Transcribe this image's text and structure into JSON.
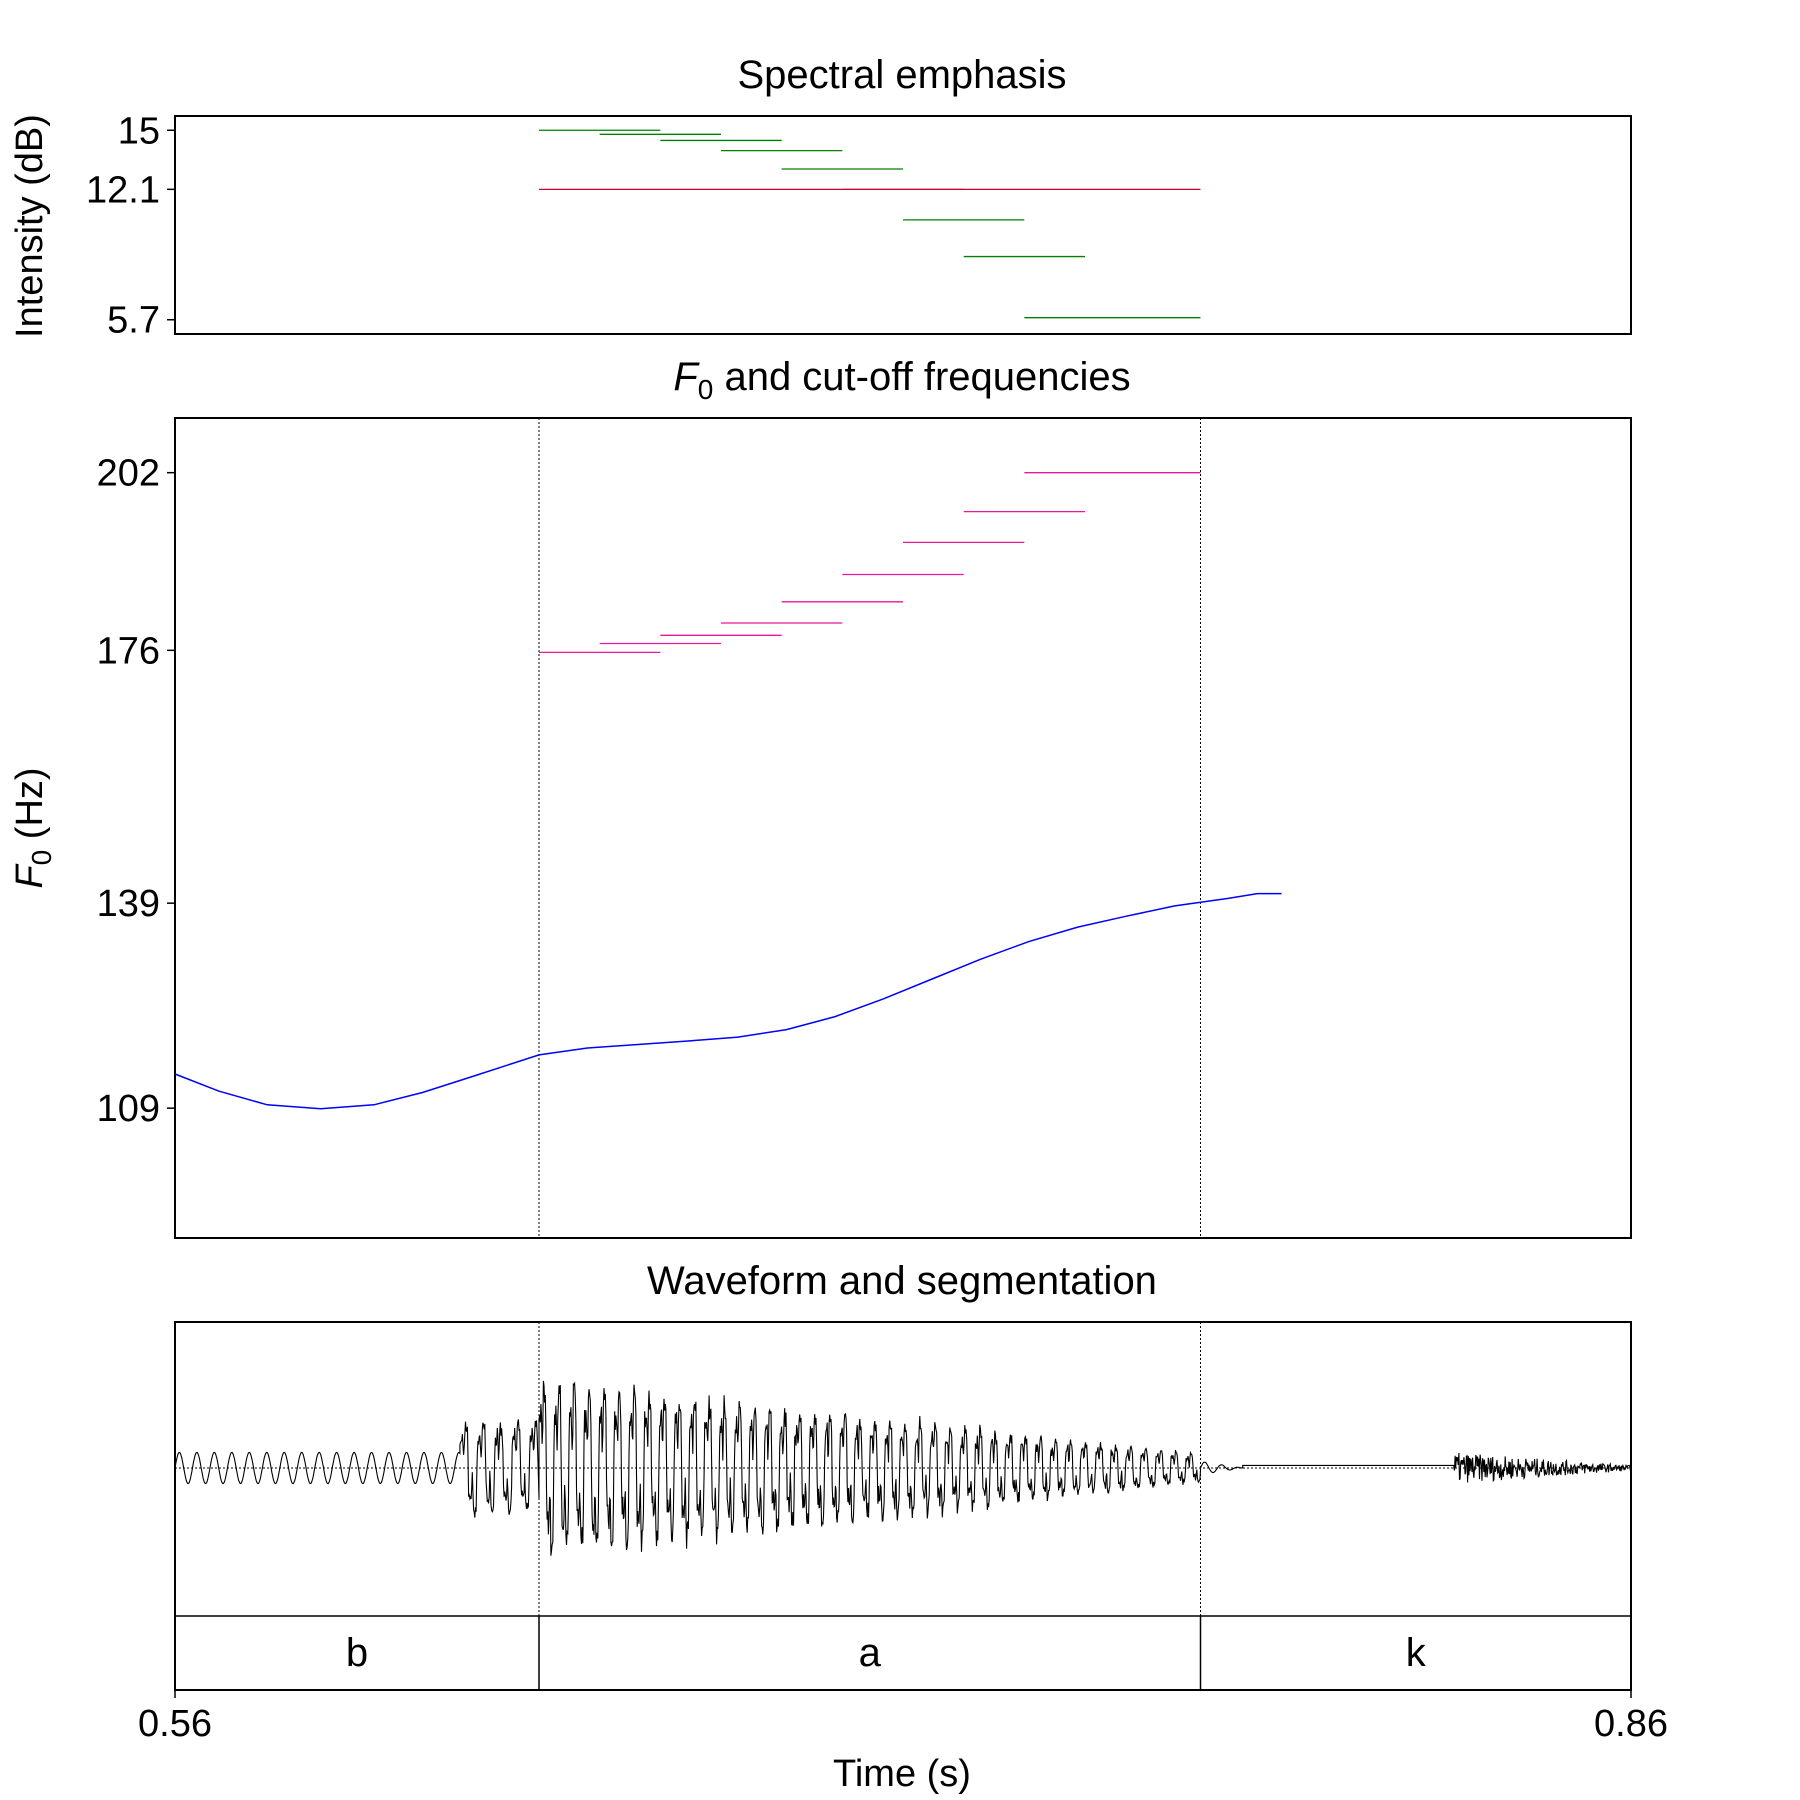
{
  "chart_data": [
    {
      "type": "line",
      "title": "Spectral emphasis",
      "ylabel": "Intensity (dB)",
      "ylim": [
        5.0,
        15.7
      ],
      "yticks": [
        {
          "value": 15,
          "label": "15"
        },
        {
          "value": 12.1,
          "label": "12.1"
        },
        {
          "value": 5.7,
          "label": "5.7"
        }
      ],
      "colors": {
        "bands": "#008000",
        "mean": "#cc0033"
      },
      "bands": [
        {
          "x0": 0.635,
          "x1": 0.66,
          "y": 15.0
        },
        {
          "x0": 0.6475,
          "x1": 0.6725,
          "y": 14.8
        },
        {
          "x0": 0.66,
          "x1": 0.685,
          "y": 14.5
        },
        {
          "x0": 0.6725,
          "x1": 0.6975,
          "y": 14.0
        },
        {
          "x0": 0.685,
          "x1": 0.71,
          "y": 13.1
        },
        {
          "x0": 0.6975,
          "x1": 0.7225,
          "y": 12.1
        },
        {
          "x0": 0.71,
          "x1": 0.735,
          "y": 10.6
        },
        {
          "x0": 0.7225,
          "x1": 0.7475,
          "y": 8.8
        },
        {
          "x0": 0.735,
          "x1": 0.7713,
          "y": 5.8
        }
      ],
      "mean": {
        "x0": 0.635,
        "x1": 0.7713,
        "y": 12.1
      }
    },
    {
      "type": "line",
      "title_main": "F",
      "title_sub": "0",
      "title_rest": " and cut-off frequencies",
      "ylabel_main": "F",
      "ylabel_sub": "0",
      "ylabel_rest": " (Hz)",
      "ylim": [
        90,
        210
      ],
      "yticks": [
        {
          "value": 202,
          "label": "202"
        },
        {
          "value": 176,
          "label": "176"
        },
        {
          "value": 139,
          "label": "139"
        },
        {
          "value": 109,
          "label": "109"
        }
      ],
      "boundaries": [
        0.635,
        0.7713
      ],
      "colors": {
        "f0": "#0000ff",
        "cutoff": "#e8189a"
      },
      "cutoff_bands": [
        {
          "x0": 0.635,
          "x1": 0.66,
          "y": 175.7
        },
        {
          "x0": 0.6475,
          "x1": 0.6725,
          "y": 177.0
        },
        {
          "x0": 0.66,
          "x1": 0.685,
          "y": 178.2
        },
        {
          "x0": 0.6725,
          "x1": 0.6975,
          "y": 180.0
        },
        {
          "x0": 0.685,
          "x1": 0.71,
          "y": 183.1
        },
        {
          "x0": 0.6975,
          "x1": 0.7225,
          "y": 187.1
        },
        {
          "x0": 0.71,
          "x1": 0.735,
          "y": 191.8
        },
        {
          "x0": 0.7225,
          "x1": 0.7475,
          "y": 196.3
        },
        {
          "x0": 0.735,
          "x1": 0.7713,
          "y": 202.0
        }
      ],
      "f0": {
        "x": [
          0.56,
          0.569,
          0.579,
          0.59,
          0.601,
          0.611,
          0.622,
          0.635,
          0.645,
          0.655,
          0.665,
          0.676,
          0.686,
          0.696,
          0.706,
          0.716,
          0.726,
          0.736,
          0.746,
          0.756,
          0.766,
          0.777,
          0.783,
          0.788
        ],
        "y": [
          114.0,
          111.5,
          109.5,
          108.9,
          109.5,
          111.3,
          113.8,
          116.8,
          117.8,
          118.3,
          118.8,
          119.4,
          120.5,
          122.4,
          125.0,
          127.9,
          130.8,
          133.4,
          135.5,
          137.1,
          138.6,
          139.7,
          140.4,
          140.4
        ]
      }
    },
    {
      "type": "line",
      "title": "Waveform and segmentation",
      "xlabel": "Time (s)",
      "xlim": [
        0.56,
        0.86
      ],
      "xticks": [
        {
          "value": 0.56,
          "label": "0.56"
        },
        {
          "value": 0.86,
          "label": "0.86"
        }
      ],
      "boundaries": [
        0.635,
        0.7713
      ],
      "segments": [
        {
          "label": "b",
          "x0": 0.56,
          "x1": 0.635
        },
        {
          "label": "a",
          "x0": 0.635,
          "x1": 0.7713
        },
        {
          "label": "k",
          "x0": 0.7713,
          "x1": 0.86
        }
      ],
      "waveform": {
        "periods": [
          {
            "x0": 0.56,
            "x1": 0.6187,
            "period": 0.0036,
            "amp": 0.12,
            "kind": "sine"
          },
          {
            "x0": 0.6187,
            "x1": 0.635,
            "period": 0.0036,
            "amp": 0.5,
            "kind": "voiced"
          },
          {
            "x0": 0.635,
            "x1": 0.7713,
            "period": 0.0031,
            "amp_start": 0.95,
            "amp_end": 0.15,
            "kind": "voiced"
          },
          {
            "x0": 0.7713,
            "x1": 0.78,
            "period": 0.0035,
            "amp": 0.05,
            "kind": "decay"
          },
          {
            "x0": 0.78,
            "x1": 0.8235,
            "period": 0.01,
            "amp": 0.0,
            "kind": "flat"
          },
          {
            "x0": 0.8235,
            "x1": 0.86,
            "period": 0.0004,
            "amp_start": 0.12,
            "amp_end": 0.02,
            "kind": "noise"
          }
        ]
      }
    }
  ]
}
